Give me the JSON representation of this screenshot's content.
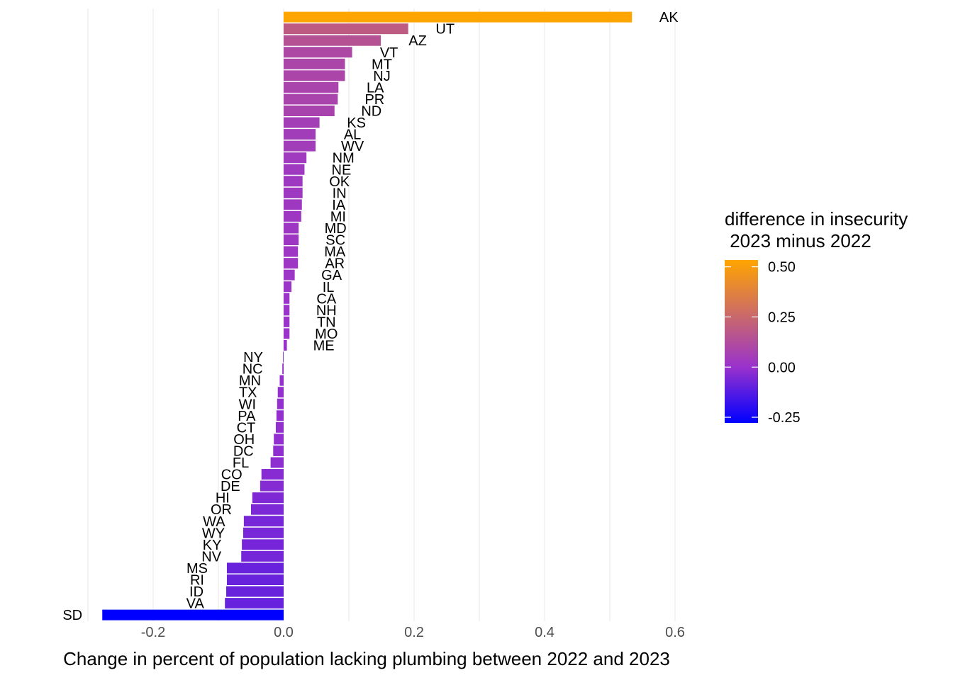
{
  "chart_data": {
    "type": "bar",
    "orientation": "horizontal",
    "xlabel": "Change in percent of population lacking plumbing between 2022 and 2023",
    "ylabel": "",
    "xlim": [
      -0.3,
      0.65
    ],
    "xticks": [
      -0.2,
      0.0,
      0.2,
      0.4,
      0.6
    ],
    "xtick_labels": [
      "-0.2",
      "0.0",
      "0.2",
      "0.4",
      "0.6"
    ],
    "grid": true,
    "categories": [
      "AK",
      "UT",
      "AZ",
      "VT",
      "MT",
      "NJ",
      "LA",
      "PR",
      "ND",
      "KS",
      "AL",
      "WV",
      "NM",
      "NE",
      "OK",
      "IN",
      "IA",
      "MI",
      "MD",
      "SC",
      "MA",
      "AR",
      "GA",
      "IL",
      "CA",
      "NH",
      "TN",
      "MO",
      "ME",
      "NY",
      "NC",
      "MN",
      "TX",
      "WI",
      "PA",
      "CT",
      "OH",
      "DC",
      "FL",
      "CO",
      "DE",
      "HI",
      "OR",
      "WA",
      "WY",
      "KY",
      "NV",
      "MS",
      "RI",
      "ID",
      "VA",
      "SD"
    ],
    "values": [
      0.534,
      0.191,
      0.149,
      0.105,
      0.094,
      0.094,
      0.084,
      0.083,
      0.078,
      0.055,
      0.049,
      0.049,
      0.035,
      0.032,
      0.029,
      0.029,
      0.028,
      0.027,
      0.023,
      0.023,
      0.022,
      0.022,
      0.017,
      0.012,
      0.009,
      0.009,
      0.009,
      0.009,
      0.005,
      -0.001,
      -0.002,
      -0.006,
      -0.009,
      -0.01,
      -0.011,
      -0.012,
      -0.015,
      -0.016,
      -0.02,
      -0.034,
      -0.036,
      -0.048,
      -0.05,
      -0.061,
      -0.062,
      -0.064,
      -0.065,
      -0.087,
      -0.087,
      -0.088,
      -0.09,
      -0.278
    ],
    "legend": {
      "title_line1": "difference in insecurity",
      "title_line2": " 2023 minus 2022",
      "ticks": [
        "0.50",
        "0.25",
        "0.00",
        "-0.25"
      ],
      "tick_values": [
        0.5,
        0.25,
        0.0,
        -0.25
      ],
      "range": [
        -0.278,
        0.534
      ],
      "low_color": "#0000ff",
      "mid_color": "#9932cc",
      "high_color": "#ffa500",
      "placement": "right"
    },
    "grid_color": "#ebebeb"
  }
}
